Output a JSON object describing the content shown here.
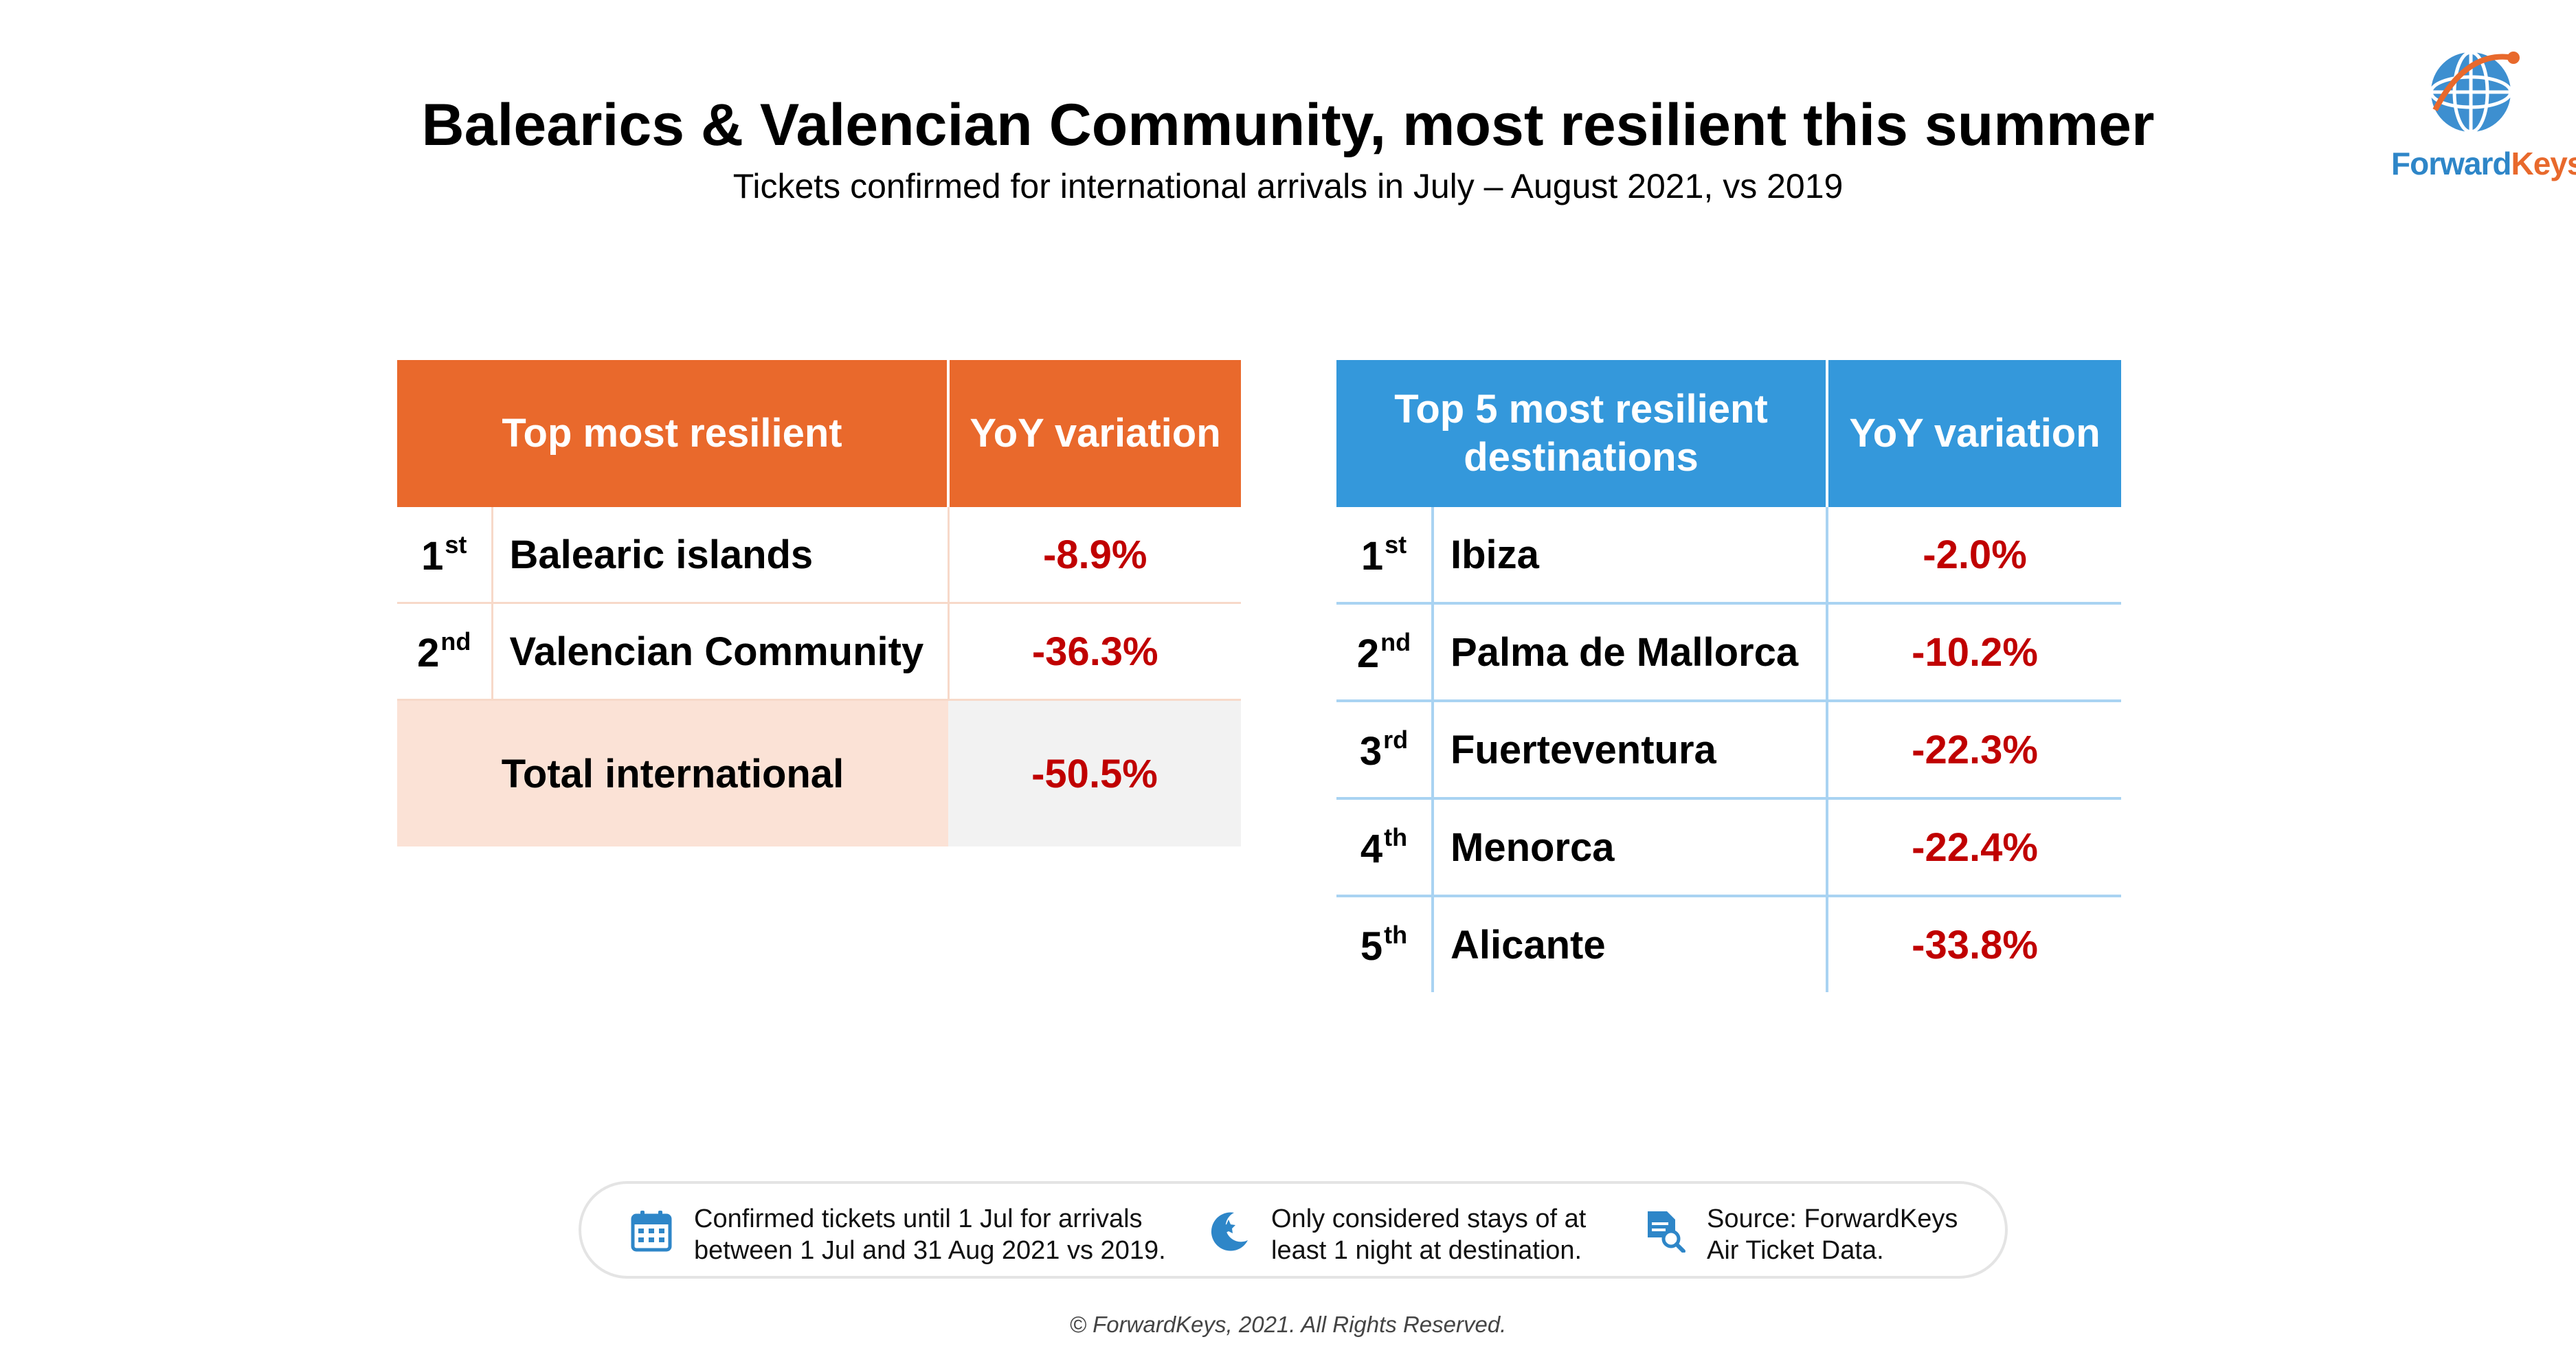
{
  "header": {
    "title": "Balearics & Valencian Community, most resilient this summer",
    "subtitle": "Tickets confirmed for international arrivals in July – August 2021, vs 2019"
  },
  "logo": {
    "text_part1": "Forward",
    "text_part2": "Keys",
    "brand_blue": "#2e86c8",
    "brand_orange": "#e8692c"
  },
  "chart_data": [
    {
      "type": "table",
      "columns": [
        "Top most resilient",
        "YoY variation"
      ],
      "rows": [
        {
          "rank": "1",
          "rank_suffix": "st",
          "name": "Balearic islands",
          "value": "-8.9%"
        },
        {
          "rank": "2",
          "rank_suffix": "nd",
          "name": "Valencian Community",
          "value": "-36.3%"
        }
      ],
      "total": {
        "label": "Total international",
        "value": "-50.5%"
      },
      "header_color": "#e9692c"
    },
    {
      "type": "table",
      "columns": [
        "Top 5 most resilient destinations",
        "YoY variation"
      ],
      "rows": [
        {
          "rank": "1",
          "rank_suffix": "st",
          "name": "Ibiza",
          "value": "-2.0%"
        },
        {
          "rank": "2",
          "rank_suffix": "nd",
          "name": "Palma de Mallorca",
          "value": "-10.2%"
        },
        {
          "rank": "3",
          "rank_suffix": "rd",
          "name": "Fuerteventura",
          "value": "-22.3%"
        },
        {
          "rank": "4",
          "rank_suffix": "th",
          "name": "Menorca",
          "value": "-22.4%"
        },
        {
          "rank": "5",
          "rank_suffix": "th",
          "name": "Alicante",
          "value": "-33.8%"
        }
      ],
      "header_color": "#3498db"
    }
  ],
  "footer": {
    "notes": [
      {
        "icon": "calendar-icon",
        "line1": "Confirmed tickets until 1 Jul for arrivals",
        "line2": "between 1 Jul and 31 Aug 2021 vs 2019."
      },
      {
        "icon": "moon-icon",
        "line1": "Only considered stays of at",
        "line2": "least 1 night at destination."
      },
      {
        "icon": "document-search-icon",
        "line1": "Source: ForwardKeys",
        "line2": "Air Ticket Data."
      }
    ],
    "copyright": "© ForwardKeys, 2021. All Rights Reserved."
  },
  "colors": {
    "negative_value": "#c00000",
    "icon_blue": "#2e86c8"
  }
}
